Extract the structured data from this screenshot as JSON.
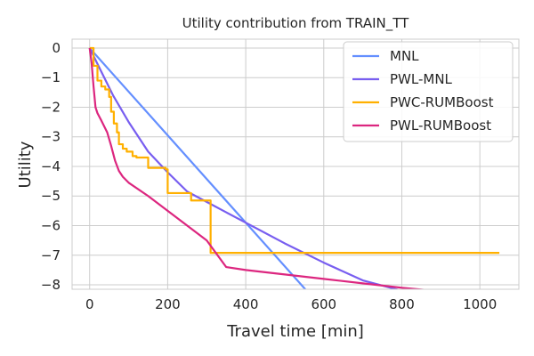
{
  "chart_data": {
    "type": "line",
    "title": "Utility contribution from TRAIN_TT",
    "xlabel": "Travel time [min]",
    "ylabel": "Utility",
    "xlim": [
      -45,
      1100
    ],
    "ylim": [
      -8.15,
      0.3
    ],
    "xticks": [
      0,
      200,
      400,
      600,
      800,
      1000
    ],
    "yticks": [
      0,
      -1,
      -2,
      -3,
      -4,
      -5,
      -6,
      -7,
      -8
    ],
    "xtick_labels": [
      "0",
      "200",
      "400",
      "600",
      "800",
      "1000"
    ],
    "ytick_labels": [
      "0",
      "−1",
      "−2",
      "−3",
      "−4",
      "−5",
      "−6",
      "−7",
      "−8"
    ],
    "grid": true,
    "legend_position": "top-right",
    "series": [
      {
        "name": "MNL",
        "color": "#648FFF",
        "x": [
          0,
          556
        ],
        "y": [
          0,
          -8.2
        ]
      },
      {
        "name": "PWL-MNL",
        "color": "#785EF0",
        "x": [
          0,
          30,
          60,
          100,
          150,
          200,
          250,
          300,
          350,
          400,
          500,
          600,
          700,
          800
        ],
        "y": [
          0,
          -0.8,
          -1.6,
          -2.5,
          -3.5,
          -4.2,
          -4.85,
          -5.2,
          -5.55,
          -5.9,
          -6.6,
          -7.25,
          -7.85,
          -8.2
        ]
      },
      {
        "name": "PWC-RUMBoost",
        "color": "#FFB000",
        "x": [
          0,
          10,
          10,
          20,
          20,
          30,
          30,
          40,
          40,
          50,
          50,
          55,
          55,
          62,
          62,
          70,
          70,
          75,
          75,
          85,
          85,
          95,
          95,
          110,
          110,
          120,
          120,
          150,
          150,
          195,
          195,
          200,
          200,
          260,
          260,
          310,
          310,
          1050
        ],
        "y": [
          0,
          0,
          -0.6,
          -0.6,
          -1.1,
          -1.1,
          -1.3,
          -1.3,
          -1.4,
          -1.4,
          -1.65,
          -1.65,
          -2.15,
          -2.15,
          -2.55,
          -2.55,
          -2.85,
          -2.85,
          -3.25,
          -3.25,
          -3.4,
          -3.4,
          -3.5,
          -3.5,
          -3.65,
          -3.65,
          -3.7,
          -3.7,
          -4.05,
          -4.05,
          -4.1,
          -4.1,
          -4.9,
          -4.9,
          -5.15,
          -5.15,
          -6.92,
          -6.92
        ]
      },
      {
        "name": "PWL-RUMBoost",
        "color": "#DC267F",
        "x": [
          0,
          5,
          10,
          15,
          20,
          30,
          45,
          55,
          65,
          75,
          85,
          100,
          150,
          200,
          250,
          300,
          350,
          400,
          500,
          600,
          700,
          800,
          900
        ],
        "y": [
          0,
          -0.5,
          -1.3,
          -2.0,
          -2.2,
          -2.45,
          -2.85,
          -3.3,
          -3.8,
          -4.15,
          -4.35,
          -4.55,
          -5.0,
          -5.5,
          -6.0,
          -6.5,
          -7.4,
          -7.5,
          -7.65,
          -7.8,
          -7.95,
          -8.1,
          -8.22
        ]
      }
    ]
  }
}
